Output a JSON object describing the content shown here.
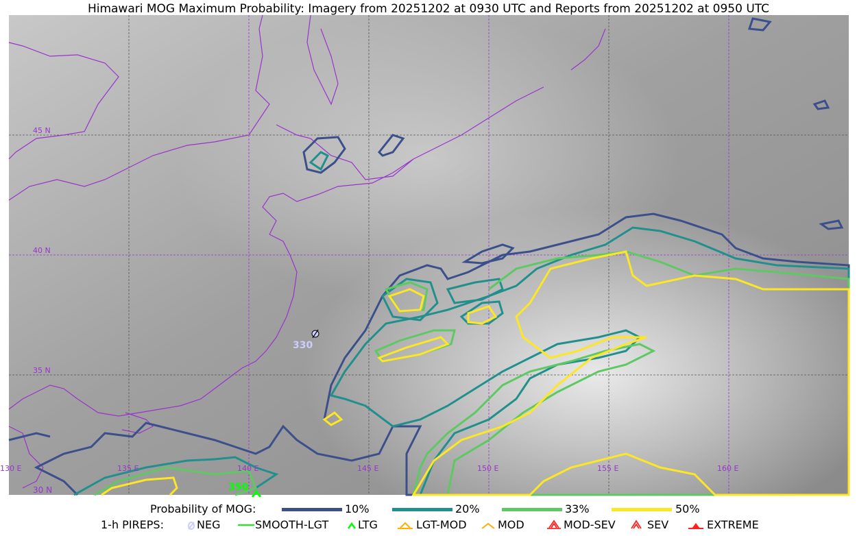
{
  "title": "Himawari MOG Maximum Probability: Imagery from 20251202 at 0930 UTC and Reports from 20251202 at 0950 UTC",
  "map": {
    "extent": {
      "lon": [
        130,
        165
      ],
      "lat": [
        30,
        50
      ]
    },
    "lat_labels": [
      "45 N",
      "40 N",
      "35 N",
      "30 N"
    ],
    "lon_labels": [
      "130 E",
      "135 E",
      "140 E",
      "145 E",
      "150 E",
      "155 E",
      "160 E"
    ],
    "coastline_color": "#9933cc",
    "gridline_color_lat": "#9933cc",
    "pireps": [
      {
        "type": "NEG",
        "label": "330",
        "lat": 36.3,
        "lon": 142.8,
        "label_color": "#ccccff"
      },
      {
        "type": "LTG",
        "label": "350",
        "lat": 30.0,
        "lon": 140.3,
        "label_color": "#00ff00"
      }
    ]
  },
  "legend": {
    "prob_title": "Probability of MOG:",
    "prob": [
      {
        "label": "10%",
        "color": "#3b4f8a"
      },
      {
        "label": "20%",
        "color": "#21908c"
      },
      {
        "label": "33%",
        "color": "#5ec962"
      },
      {
        "label": "50%",
        "color": "#fde725"
      }
    ],
    "pirep_title": "1-h PIREPS:",
    "pireps": [
      {
        "label": "NEG",
        "icon": "neg-slashed-circle-icon",
        "color": "#ccccff"
      },
      {
        "label": "SMOOTH-LGT",
        "icon": "line-icon",
        "color": "#00ff00"
      },
      {
        "label": "LTG",
        "icon": "caret-icon",
        "color": "#00ff00"
      },
      {
        "label": "LGT-MOD",
        "icon": "caret-bar-icon",
        "color": "#ffb000"
      },
      {
        "label": "MOD",
        "icon": "caret-icon",
        "color": "#ffb000"
      },
      {
        "label": "MOD-SEV",
        "icon": "double-caret-bar-icon",
        "color": "#ff2020"
      },
      {
        "label": "SEV",
        "icon": "double-caret-icon",
        "color": "#ff2020"
      },
      {
        "label": "EXTREME",
        "icon": "filled-triangle-icon",
        "color": "#ff2020"
      }
    ]
  }
}
